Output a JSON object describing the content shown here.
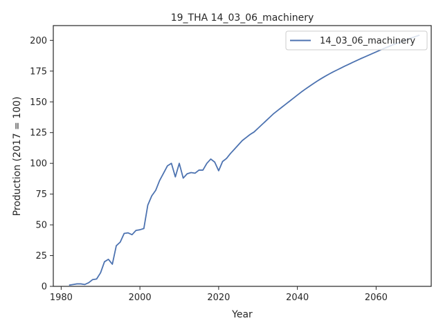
{
  "chart_data": {
    "type": "line",
    "title": "19_THA 14_03_06_machinery",
    "xlabel": "Year",
    "ylabel": "Production (2017 = 100)",
    "xlim": [
      1978,
      2074
    ],
    "ylim": [
      0,
      212
    ],
    "x_ticks": [
      1980,
      2000,
      2020,
      2040,
      2060
    ],
    "y_ticks": [
      0,
      25,
      50,
      75,
      100,
      125,
      150,
      175,
      200
    ],
    "grid": false,
    "legend_position": "top-right",
    "line_color": "#4c72b0",
    "series": [
      {
        "name": "14_03_06_machinery",
        "x": [
          1982,
          1983,
          1984,
          1985,
          1986,
          1987,
          1988,
          1989,
          1990,
          1991,
          1992,
          1993,
          1994,
          1995,
          1996,
          1997,
          1998,
          1999,
          2000,
          2001,
          2002,
          2003,
          2004,
          2005,
          2006,
          2007,
          2008,
          2009,
          2010,
          2011,
          2012,
          2013,
          2014,
          2015,
          2016,
          2017,
          2018,
          2019,
          2020,
          2021,
          2022,
          2023,
          2024,
          2025,
          2026,
          2027,
          2028,
          2029,
          2030,
          2031,
          2032,
          2033,
          2034,
          2035,
          2036,
          2037,
          2038,
          2039,
          2040,
          2041,
          2042,
          2043,
          2044,
          2045,
          2046,
          2047,
          2048,
          2049,
          2050,
          2051,
          2052,
          2053,
          2054,
          2055,
          2056,
          2057,
          2058,
          2059,
          2060,
          2061,
          2062,
          2063,
          2064,
          2065,
          2066,
          2067,
          2068,
          2069,
          2070,
          2071
        ],
        "values": [
          1,
          1.5,
          2,
          2,
          1.5,
          3,
          5.5,
          6,
          11,
          20,
          22,
          18,
          33,
          36,
          43,
          43.5,
          42,
          45.5,
          46,
          47,
          66,
          73.5,
          78,
          86,
          92,
          98,
          100,
          89,
          100,
          88,
          91.5,
          92.5,
          92,
          94.5,
          94.5,
          100,
          103.5,
          101,
          94,
          101.5,
          104,
          108,
          111.5,
          115,
          118.5,
          121,
          123.5,
          125.5,
          128.5,
          131.5,
          134.5,
          137.5,
          140.5,
          143,
          145.5,
          148,
          150.5,
          153,
          155.5,
          158,
          160.3,
          162.5,
          164.7,
          166.8,
          168.8,
          170.7,
          172.5,
          174.2,
          175.8,
          177.4,
          179,
          180.5,
          182,
          183.5,
          185,
          186.4,
          187.8,
          189.2,
          190.6,
          192,
          193.4,
          194.7,
          196,
          197.2,
          198.4,
          199.6,
          200.8,
          202,
          203.1,
          204.2
        ]
      }
    ]
  }
}
